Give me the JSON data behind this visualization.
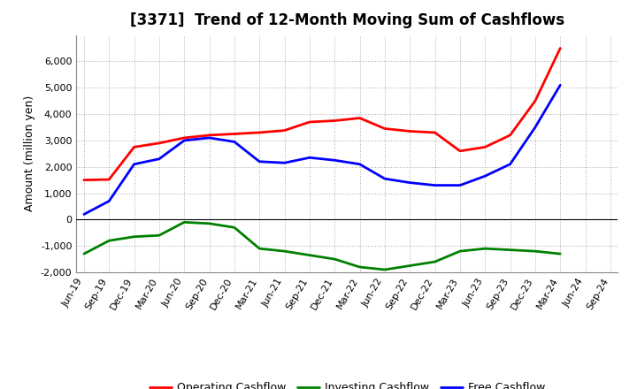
{
  "title": "[3371]  Trend of 12-Month Moving Sum of Cashflows",
  "ylabel": "Amount (million yen)",
  "ylim": [
    -2000,
    7000
  ],
  "yticks": [
    -2000,
    -1000,
    0,
    1000,
    2000,
    3000,
    4000,
    5000,
    6000
  ],
  "x_labels": [
    "Jun-19",
    "Sep-19",
    "Dec-19",
    "Mar-20",
    "Jun-20",
    "Sep-20",
    "Dec-20",
    "Mar-21",
    "Jun-21",
    "Sep-21",
    "Dec-21",
    "Mar-22",
    "Jun-22",
    "Sep-22",
    "Dec-22",
    "Mar-23",
    "Jun-23",
    "Sep-23",
    "Dec-23",
    "Mar-24",
    "Jun-24",
    "Sep-24"
  ],
  "operating": [
    1500,
    1520,
    2750,
    2900,
    3100,
    3200,
    3250,
    3300,
    3380,
    3700,
    3750,
    3850,
    3450,
    3350,
    3300,
    2600,
    2750,
    3200,
    4500,
    6500,
    null,
    null
  ],
  "investing": [
    -1300,
    -800,
    -650,
    -600,
    -100,
    -150,
    -300,
    -1100,
    -1200,
    -1350,
    -1500,
    -1800,
    -1900,
    -1750,
    -1600,
    -1200,
    -1100,
    -1150,
    -1200,
    -1300,
    null,
    null
  ],
  "free": [
    200,
    700,
    2100,
    2300,
    3000,
    3100,
    2950,
    2200,
    2150,
    2350,
    2250,
    2100,
    1550,
    1400,
    1300,
    1300,
    1650,
    2100,
    3500,
    5100,
    null,
    null
  ],
  "operating_color": "#FF0000",
  "investing_color": "#008000",
  "free_color": "#0000FF",
  "line_width": 2.0,
  "bg_color": "#FFFFFF",
  "plot_bg_color": "#FFFFFF",
  "grid_color": "#AAAAAA",
  "title_fontsize": 12,
  "axis_label_fontsize": 9,
  "tick_fontsize": 8,
  "legend_fontsize": 9
}
